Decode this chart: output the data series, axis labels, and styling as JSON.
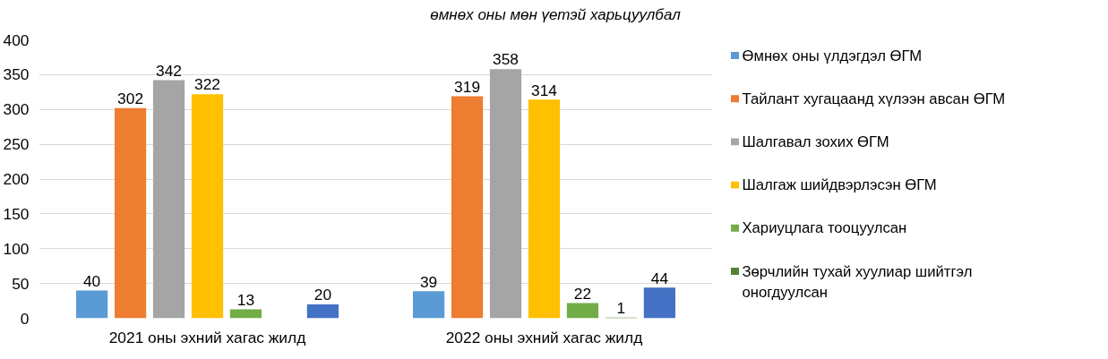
{
  "chart_data": {
    "type": "bar",
    "title": "өмнөх оны мөн үетэй харьцуулбал",
    "categories": [
      "2021 оны эхний хагас жилд",
      "2022 оны эхний хагас жилд"
    ],
    "series": [
      {
        "name": "Өмнөх оны үлдэгдэл ӨГМ",
        "color": "#5b9bd5",
        "values": [
          40,
          39
        ]
      },
      {
        "name": "Тайлант хугацаанд хүлээн авсан ӨГМ",
        "color": "#ed7d31",
        "values": [
          302,
          319
        ]
      },
      {
        "name": "Шалгавал зохих ӨГМ",
        "color": "#a5a5a5",
        "values": [
          342,
          358
        ]
      },
      {
        "name": "Шалгаж шийдвэрлэсэн ӨГМ",
        "color": "#ffc000",
        "values": [
          322,
          314
        ]
      },
      {
        "name": "Хариуцлага тооцуулсан",
        "color": "#70ad47",
        "values": [
          13,
          22
        ]
      },
      {
        "name": "Зөрчлийн тухай хуулиар шийтгэл оногдуулсан",
        "color": "#548235",
        "values": [
          null,
          1
        ]
      },
      {
        "color": "#4472c4",
        "values": [
          20,
          44
        ]
      }
    ],
    "ylim": [
      0,
      400
    ],
    "yticks": [
      0,
      50,
      100,
      150,
      200,
      250,
      300,
      350,
      400
    ],
    "grid": "y",
    "legend": "right",
    "data_labels": true
  }
}
